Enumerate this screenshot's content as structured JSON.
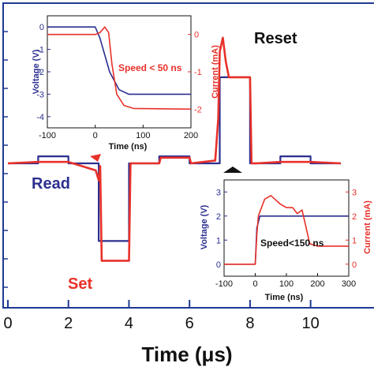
{
  "colors": {
    "voltage": "#2b2f8f",
    "current": "#e8312a",
    "axis": "#1f3a93",
    "text": "#111111"
  },
  "main": {
    "x_ticks": [
      "0",
      "2",
      "4",
      "6",
      "8",
      "10"
    ],
    "xlabel": "Time (μs)",
    "labels": {
      "read": "Read",
      "set": "Set",
      "reset": "Reset"
    }
  },
  "inset_set": {
    "ylabel_left": "Voltage (V)",
    "ylabel_right": "Current (mA)",
    "xlabel": "Time (ns)",
    "x_ticks": [
      "-100",
      "0",
      "100",
      "200"
    ],
    "y_left_ticks": [
      "0",
      "-1",
      "-2",
      "-3",
      "-4"
    ],
    "y_right_ticks": [
      "0",
      "-1",
      "-2"
    ],
    "annotation": "Speed < 50 ns"
  },
  "inset_reset": {
    "ylabel_left": "Voltage (V)",
    "ylabel_right": "Current (mA)",
    "xlabel": "Time (ns)",
    "x_ticks": [
      "-100",
      "0",
      "100",
      "200",
      "300"
    ],
    "y_left_ticks": [
      "0",
      "1",
      "2",
      "3"
    ],
    "y_right_ticks": [
      "0",
      "1",
      "2",
      "3"
    ],
    "annotation": "Speed<150 ns"
  },
  "chart_data": [
    {
      "type": "line",
      "xlabel": "Time (μs)",
      "ylabel": "",
      "xlim": [
        0,
        11
      ],
      "ylim": [
        -4.5,
        4.5
      ],
      "x_ticks": [
        0,
        2,
        4,
        6,
        8,
        10
      ],
      "annotations": [
        "Read",
        "Set",
        "Reset"
      ],
      "series": [
        {
          "x": [
            0,
            1,
            1,
            2,
            2,
            3,
            3,
            4,
            4,
            5,
            5,
            6,
            6,
            7,
            7,
            8,
            8,
            9,
            9,
            10,
            10,
            11
          ],
          "y": [
            0,
            0,
            0.25,
            0.25,
            0,
            0,
            -2.75,
            -2.75,
            0,
            0,
            0.25,
            0.25,
            0,
            0,
            3.05,
            3.05,
            0,
            0,
            0.25,
            0.25,
            0,
            0
          ]
        },
        {
          "x": [
            0,
            1,
            2,
            2.9,
            3.0,
            3.05,
            3.1,
            3.15,
            4,
            4.05,
            5,
            5.05,
            6,
            6.05,
            6.85,
            6.95,
            7.0,
            7.1,
            7.2,
            7.3,
            8,
            8.05,
            8.2,
            9,
            10,
            11
          ],
          "y": [
            0,
            0.05,
            0.05,
            -0.25,
            -0.6,
            -0.1,
            -3.45,
            -3.45,
            -3.45,
            0,
            0,
            0.2,
            0.2,
            0,
            0.1,
            1.6,
            3.95,
            4.45,
            3.6,
            3.05,
            3.05,
            0,
            0,
            0.05,
            0.05,
            0
          ]
        }
      ]
    },
    {
      "type": "line",
      "annotation": "Speed < 50 ns",
      "xlabel": "Time (ns)",
      "ylabel": "Voltage (V)",
      "y2label": "Current (mA)",
      "xlim": [
        -100,
        200
      ],
      "ylim": [
        -4.5,
        0.5
      ],
      "y2lim": [
        -2.5,
        0.5
      ],
      "x_ticks": [
        -100,
        0,
        100,
        200
      ],
      "y_ticks": [
        0,
        -1,
        -2,
        -3,
        -4
      ],
      "y2_ticks": [
        0,
        -1,
        -2
      ],
      "series": [
        {
          "axis": "left",
          "x": [
            -100,
            0,
            10,
            30,
            50,
            70,
            200
          ],
          "y": [
            0,
            0,
            -0.5,
            -2.0,
            -2.8,
            -3.0,
            -3.0
          ]
        },
        {
          "axis": "right",
          "x": [
            -100,
            0,
            10,
            20,
            28,
            35,
            45,
            60,
            80,
            200
          ],
          "y": [
            0,
            0,
            0.05,
            0.2,
            0.05,
            -0.8,
            -1.6,
            -1.9,
            -1.98,
            -2.0
          ]
        }
      ]
    },
    {
      "type": "line",
      "annotation": "Speed<150 ns",
      "xlabel": "Time (ns)",
      "ylabel": "Voltage (V)",
      "y2label": "Current (mA)",
      "xlim": [
        -100,
        300
      ],
      "ylim": [
        -0.5,
        3.5
      ],
      "y2lim": [
        -0.5,
        3.5
      ],
      "x_ticks": [
        -100,
        0,
        100,
        200,
        300
      ],
      "y_ticks": [
        0,
        1,
        2,
        3
      ],
      "y2_ticks": [
        0,
        1,
        2,
        3
      ],
      "series": [
        {
          "axis": "left",
          "x": [
            -100,
            0,
            5,
            15,
            300
          ],
          "y": [
            0,
            0,
            1.5,
            2.0,
            2.0
          ]
        },
        {
          "axis": "right",
          "x": [
            -100,
            0,
            5,
            10,
            30,
            50,
            80,
            100,
            120,
            135,
            150,
            160,
            175,
            200,
            300
          ],
          "y": [
            0,
            0,
            1.2,
            2.0,
            2.7,
            2.85,
            2.5,
            2.35,
            2.35,
            2.1,
            2.25,
            1.7,
            0.85,
            0.75,
            0.75
          ]
        }
      ]
    }
  ]
}
